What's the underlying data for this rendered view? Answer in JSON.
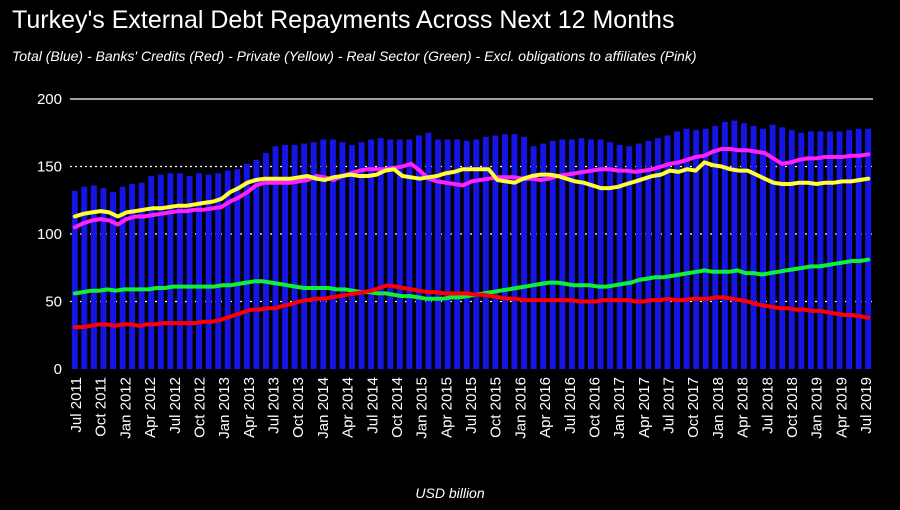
{
  "chart_data": {
    "type": "bar",
    "title": "Turkey's External Debt Repayments Across Next 12 Months",
    "subtitle": "Total (Blue) - Banks' Credits (Red) - Private (Yellow) - Real Sector (Green) - Excl. obligations to affiliates (Pink)",
    "xlabel": "USD billion",
    "ylim": [
      0,
      200
    ],
    "yticks": [
      0,
      50,
      100,
      150,
      200
    ],
    "grid": true,
    "x_tick_labels": [
      "Jul 2011",
      "Oct 2011",
      "Jan 2012",
      "Apr 2012",
      "Jul 2012",
      "Oct 2012",
      "Jan 2013",
      "Apr 2013",
      "Jul 2013",
      "Oct 2013",
      "Jan 2014",
      "Apr 2014",
      "Jul 2014",
      "Oct 2014",
      "Jan 2015",
      "Apr 2015",
      "Jul 2015",
      "Oct 2015",
      "Jan 2016",
      "Apr 2016",
      "Jul 2016",
      "Oct 2016",
      "Jan 2017",
      "Apr 2017",
      "Jul 2017",
      "Oct 2017",
      "Jan 2018",
      "Apr 2018",
      "Jul 2018",
      "Oct 2018",
      "Jan 2019",
      "Apr 2019",
      "Jul 2019"
    ],
    "colors": {
      "total": "#1515e6",
      "banks": "#ff0000",
      "private": "#ffff33",
      "real_sector": "#11ee33",
      "excl_affiliates": "#ff22ff"
    },
    "series": [
      {
        "key": "total",
        "type": "bar",
        "values": [
          132,
          135,
          136,
          134,
          131,
          135,
          137,
          138,
          143,
          144,
          145,
          145,
          143,
          145,
          144,
          145,
          147,
          148,
          152,
          155,
          160,
          165,
          166,
          166,
          167,
          168,
          170,
          170,
          168,
          166,
          168,
          170,
          171,
          170,
          170,
          170,
          173,
          175,
          170,
          170,
          170,
          169,
          170,
          172,
          173,
          174,
          174,
          172,
          165,
          167,
          169,
          170,
          170,
          171,
          170,
          170,
          168,
          166,
          165,
          167,
          169,
          171,
          173,
          176,
          178,
          177,
          178,
          180,
          183,
          184,
          182,
          180,
          178,
          181,
          179,
          177,
          175,
          176,
          176,
          176,
          176,
          177,
          178,
          178
        ]
      },
      {
        "key": "banks",
        "type": "line",
        "values": [
          31,
          31,
          32,
          33,
          33,
          32,
          33,
          33,
          32,
          33,
          33,
          34,
          34,
          34,
          34,
          34,
          35,
          35,
          36,
          38,
          40,
          42,
          44,
          44,
          45,
          45,
          47,
          48,
          50,
          51,
          52,
          52,
          53,
          54,
          55,
          56,
          57,
          58,
          60,
          62,
          61,
          60,
          59,
          58,
          57,
          57,
          56,
          56,
          56,
          56,
          55,
          55,
          54,
          53,
          52,
          52,
          51,
          51,
          51,
          51,
          51,
          51,
          51,
          50,
          50,
          50,
          51,
          51,
          51,
          51,
          50,
          50,
          51,
          51,
          52,
          51,
          51,
          52,
          52,
          52,
          53,
          53,
          52,
          51,
          50,
          48,
          47,
          46,
          45,
          45,
          44,
          44,
          43,
          43,
          42,
          41,
          40,
          40,
          39,
          38
        ]
      },
      {
        "key": "private",
        "type": "line",
        "values": [
          113,
          115,
          116,
          117,
          116,
          113,
          116,
          117,
          118,
          119,
          119,
          120,
          121,
          121,
          122,
          123,
          124,
          126,
          131,
          134,
          138,
          140,
          141,
          141,
          141,
          141,
          142,
          143,
          141,
          140,
          142,
          143,
          144,
          143,
          143,
          144,
          147,
          148,
          143,
          142,
          141,
          142,
          143,
          145,
          146,
          148,
          148,
          148,
          148,
          140,
          139,
          138,
          141,
          143,
          144,
          144,
          143,
          141,
          139,
          138,
          136,
          134,
          134,
          135,
          137,
          139,
          141,
          143,
          144,
          147,
          146,
          148,
          147,
          153,
          151,
          150,
          148,
          147,
          147,
          144,
          141,
          138,
          137,
          137,
          138,
          138,
          137,
          138,
          138,
          139,
          139,
          140,
          141
        ]
      },
      {
        "key": "real_sector",
        "type": "line",
        "values": [
          56,
          57,
          58,
          58,
          59,
          58,
          59,
          59,
          59,
          59,
          60,
          60,
          61,
          61,
          61,
          61,
          61,
          61,
          62,
          62,
          63,
          64,
          65,
          65,
          64,
          63,
          62,
          61,
          60,
          60,
          60,
          60,
          59,
          59,
          58,
          57,
          57,
          56,
          56,
          55,
          54,
          54,
          53,
          52,
          52,
          52,
          53,
          53,
          54,
          55,
          56,
          57,
          58,
          59,
          60,
          61,
          62,
          63,
          64,
          64,
          63,
          62,
          62,
          62,
          61,
          61,
          62,
          63,
          64,
          66,
          67,
          68,
          68,
          69,
          70,
          71,
          72,
          73,
          72,
          72,
          72,
          73,
          71,
          71,
          70,
          71,
          72,
          73,
          74,
          75,
          76,
          76,
          77,
          78,
          79,
          80,
          80,
          81
        ]
      },
      {
        "key": "excl_affiliates",
        "type": "line",
        "values": [
          105,
          108,
          110,
          111,
          110,
          107,
          111,
          113,
          113,
          114,
          115,
          116,
          117,
          117,
          118,
          118,
          119,
          120,
          124,
          127,
          131,
          136,
          138,
          138,
          138,
          138,
          139,
          140,
          143,
          142,
          140,
          143,
          145,
          147,
          148,
          148,
          148,
          149,
          150,
          152,
          147,
          141,
          139,
          138,
          137,
          136,
          139,
          140,
          141,
          142,
          142,
          142,
          141,
          141,
          140,
          141,
          143,
          144,
          145,
          146,
          147,
          148,
          148,
          147,
          147,
          146,
          147,
          148,
          150,
          152,
          153,
          155,
          157,
          158,
          161,
          163,
          163,
          162,
          162,
          161,
          160,
          156,
          152,
          153,
          155,
          156,
          156,
          157,
          157,
          157,
          158,
          158,
          159
        ]
      }
    ]
  }
}
